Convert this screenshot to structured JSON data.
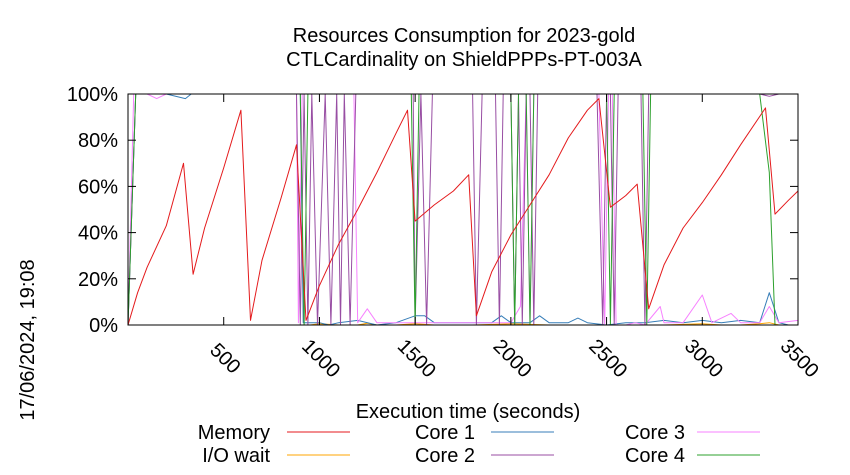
{
  "chart_data": {
    "type": "line",
    "title_lines": [
      "Resources Consumption for 2023-gold",
      "CTLCardinality on ShieldPPPs-PT-003A"
    ],
    "xlabel": "Execution time (seconds)",
    "ylabel": "",
    "timestamp": "17/06/2024, 19:08",
    "xlim": [
      0,
      3500
    ],
    "ylim": [
      0,
      100
    ],
    "x_ticks": [
      500,
      1000,
      1500,
      2000,
      2500,
      3000,
      3500
    ],
    "x_tick_labels": [
      "500",
      "1000",
      "1500",
      "2000",
      "2500",
      "3000",
      "3500"
    ],
    "y_ticks": [
      0,
      20,
      40,
      60,
      80,
      100
    ],
    "y_tick_labels": [
      "0%",
      "20%",
      "40%",
      "60%",
      "80%",
      "100%"
    ],
    "legend_position": "bottom",
    "series": [
      {
        "name": "Memory",
        "color": "#e41a1c",
        "points": [
          [
            0,
            0
          ],
          [
            50,
            14
          ],
          [
            100,
            25
          ],
          [
            200,
            43
          ],
          [
            290,
            70
          ],
          [
            340,
            22
          ],
          [
            400,
            42
          ],
          [
            500,
            68
          ],
          [
            590,
            93
          ],
          [
            640,
            2
          ],
          [
            700,
            28
          ],
          [
            800,
            55
          ],
          [
            880,
            78
          ],
          [
            930,
            2
          ],
          [
            1000,
            17
          ],
          [
            1100,
            35
          ],
          [
            1200,
            50
          ],
          [
            1300,
            66
          ],
          [
            1400,
            83
          ],
          [
            1460,
            93
          ],
          [
            1500,
            45
          ],
          [
            1600,
            52
          ],
          [
            1700,
            58
          ],
          [
            1780,
            65
          ],
          [
            1820,
            4
          ],
          [
            1900,
            23
          ],
          [
            2000,
            39
          ],
          [
            2100,
            52
          ],
          [
            2200,
            65
          ],
          [
            2300,
            81
          ],
          [
            2400,
            93
          ],
          [
            2460,
            98
          ],
          [
            2520,
            51
          ],
          [
            2600,
            56
          ],
          [
            2660,
            61
          ],
          [
            2720,
            7
          ],
          [
            2800,
            26
          ],
          [
            2900,
            42
          ],
          [
            3000,
            53
          ],
          [
            3100,
            65
          ],
          [
            3200,
            78
          ],
          [
            3330,
            94
          ],
          [
            3380,
            48
          ],
          [
            3450,
            54
          ],
          [
            3500,
            58
          ]
        ]
      },
      {
        "name": "I/O wait",
        "color": "#ffa500",
        "points": [
          [
            0,
            0
          ],
          [
            100,
            0
          ],
          [
            200,
            0
          ],
          [
            300,
            0
          ],
          [
            400,
            0
          ],
          [
            500,
            0
          ],
          [
            600,
            0
          ],
          [
            700,
            0
          ],
          [
            800,
            0
          ],
          [
            900,
            0
          ],
          [
            950,
            0
          ],
          [
            1000,
            0.5
          ],
          [
            1100,
            0
          ],
          [
            1200,
            0
          ],
          [
            1250,
            0.8
          ],
          [
            1300,
            0
          ],
          [
            1400,
            0
          ],
          [
            1500,
            0.5
          ],
          [
            1600,
            0
          ],
          [
            1800,
            0
          ],
          [
            2000,
            0.5
          ],
          [
            2200,
            0
          ],
          [
            2400,
            0
          ],
          [
            2600,
            0
          ],
          [
            2800,
            0
          ],
          [
            3000,
            0.5
          ],
          [
            3100,
            0
          ],
          [
            3200,
            0
          ],
          [
            3300,
            0.5
          ],
          [
            3350,
            1
          ],
          [
            3400,
            0
          ],
          [
            3500,
            0
          ]
        ]
      },
      {
        "name": "Core 1",
        "color": "#377eb8",
        "points": [
          [
            0,
            0
          ],
          [
            40,
            100
          ],
          [
            100,
            100
          ],
          [
            200,
            100
          ],
          [
            300,
            98
          ],
          [
            330,
            100
          ],
          [
            400,
            100
          ],
          [
            600,
            100
          ],
          [
            900,
            100
          ],
          [
            915,
            1
          ],
          [
            1000,
            1
          ],
          [
            1050,
            0
          ],
          [
            1100,
            1
          ],
          [
            1200,
            2
          ],
          [
            1300,
            0
          ],
          [
            1400,
            1
          ],
          [
            1500,
            4
          ],
          [
            1550,
            4
          ],
          [
            1600,
            1
          ],
          [
            1700,
            1
          ],
          [
            1800,
            1
          ],
          [
            1900,
            1
          ],
          [
            1950,
            4
          ],
          [
            2000,
            1
          ],
          [
            2050,
            1
          ],
          [
            2100,
            1
          ],
          [
            2150,
            4
          ],
          [
            2200,
            1
          ],
          [
            2300,
            1
          ],
          [
            2350,
            3
          ],
          [
            2400,
            1
          ],
          [
            2500,
            0
          ],
          [
            2600,
            1
          ],
          [
            2700,
            1
          ],
          [
            2800,
            2
          ],
          [
            2900,
            1
          ],
          [
            3000,
            2
          ],
          [
            3100,
            1
          ],
          [
            3200,
            2
          ],
          [
            3300,
            1
          ],
          [
            3350,
            14
          ],
          [
            3400,
            1
          ],
          [
            3450,
            0
          ],
          [
            3500,
            0
          ]
        ]
      },
      {
        "name": "Core 2",
        "color": "#984ea3",
        "points": [
          [
            0,
            0
          ],
          [
            40,
            100
          ],
          [
            200,
            100
          ],
          [
            400,
            100
          ],
          [
            600,
            100
          ],
          [
            880,
            100
          ],
          [
            900,
            0
          ],
          [
            920,
            100
          ],
          [
            940,
            0
          ],
          [
            960,
            100
          ],
          [
            990,
            0
          ],
          [
            1030,
            100
          ],
          [
            1060,
            0
          ],
          [
            1090,
            100
          ],
          [
            1110,
            0
          ],
          [
            1130,
            100
          ],
          [
            1160,
            0
          ],
          [
            1190,
            100
          ],
          [
            1400,
            100
          ],
          [
            1490,
            100
          ],
          [
            1500,
            0
          ],
          [
            1530,
            100
          ],
          [
            1560,
            0
          ],
          [
            1590,
            100
          ],
          [
            1800,
            100
          ],
          [
            1820,
            0
          ],
          [
            1850,
            100
          ],
          [
            1920,
            100
          ],
          [
            1940,
            0
          ],
          [
            1960,
            100
          ],
          [
            2000,
            100
          ],
          [
            2020,
            0
          ],
          [
            2040,
            100
          ],
          [
            2060,
            0
          ],
          [
            2080,
            100
          ],
          [
            2100,
            100
          ],
          [
            2120,
            0
          ],
          [
            2140,
            100
          ],
          [
            2450,
            100
          ],
          [
            2480,
            0
          ],
          [
            2500,
            100
          ],
          [
            2520,
            100
          ],
          [
            2540,
            0
          ],
          [
            2560,
            100
          ],
          [
            2680,
            100
          ],
          [
            2700,
            0
          ],
          [
            2720,
            100
          ],
          [
            3300,
            100
          ],
          [
            3350,
            99
          ],
          [
            3400,
            100
          ],
          [
            3500,
            100
          ]
        ]
      },
      {
        "name": "Core 3",
        "color": "#f781ff",
        "points": [
          [
            0,
            0
          ],
          [
            30,
            100
          ],
          [
            100,
            100
          ],
          [
            150,
            98
          ],
          [
            200,
            100
          ],
          [
            300,
            100
          ],
          [
            600,
            100
          ],
          [
            880,
            100
          ],
          [
            890,
            1
          ],
          [
            910,
            100
          ],
          [
            1000,
            100
          ],
          [
            1100,
            100
          ],
          [
            1180,
            100
          ],
          [
            1200,
            1
          ],
          [
            1250,
            7
          ],
          [
            1300,
            1
          ],
          [
            1400,
            1
          ],
          [
            1500,
            1
          ],
          [
            1550,
            1
          ],
          [
            1600,
            1
          ],
          [
            1700,
            1
          ],
          [
            1800,
            1
          ],
          [
            1900,
            1
          ],
          [
            2000,
            1
          ],
          [
            2050,
            8
          ],
          [
            2080,
            100
          ],
          [
            2100,
            0
          ],
          [
            2120,
            100
          ],
          [
            2460,
            100
          ],
          [
            2490,
            0
          ],
          [
            2510,
            100
          ],
          [
            2530,
            100
          ],
          [
            2550,
            0
          ],
          [
            2600,
            0
          ],
          [
            2650,
            1
          ],
          [
            2700,
            0
          ],
          [
            2780,
            8
          ],
          [
            2800,
            1
          ],
          [
            2900,
            1
          ],
          [
            3000,
            13
          ],
          [
            3050,
            1
          ],
          [
            3150,
            5
          ],
          [
            3200,
            1
          ],
          [
            3300,
            1
          ],
          [
            3350,
            8
          ],
          [
            3400,
            1
          ],
          [
            3500,
            2
          ]
        ]
      },
      {
        "name": "Core 4",
        "color": "#2ca02c",
        "points": [
          [
            0,
            0
          ],
          [
            40,
            100
          ],
          [
            200,
            100
          ],
          [
            600,
            100
          ],
          [
            900,
            100
          ],
          [
            920,
            0
          ],
          [
            940,
            100
          ],
          [
            1480,
            100
          ],
          [
            1500,
            0
          ],
          [
            1520,
            100
          ],
          [
            2000,
            100
          ],
          [
            2020,
            0
          ],
          [
            2040,
            100
          ],
          [
            2080,
            100
          ],
          [
            2100,
            0
          ],
          [
            2120,
            100
          ],
          [
            2500,
            100
          ],
          [
            2520,
            0
          ],
          [
            2540,
            100
          ],
          [
            2690,
            100
          ],
          [
            2710,
            0
          ],
          [
            2730,
            100
          ],
          [
            3300,
            100
          ],
          [
            3350,
            66
          ],
          [
            3380,
            0
          ],
          [
            3400,
            0
          ],
          [
            3500,
            0
          ]
        ]
      }
    ]
  }
}
